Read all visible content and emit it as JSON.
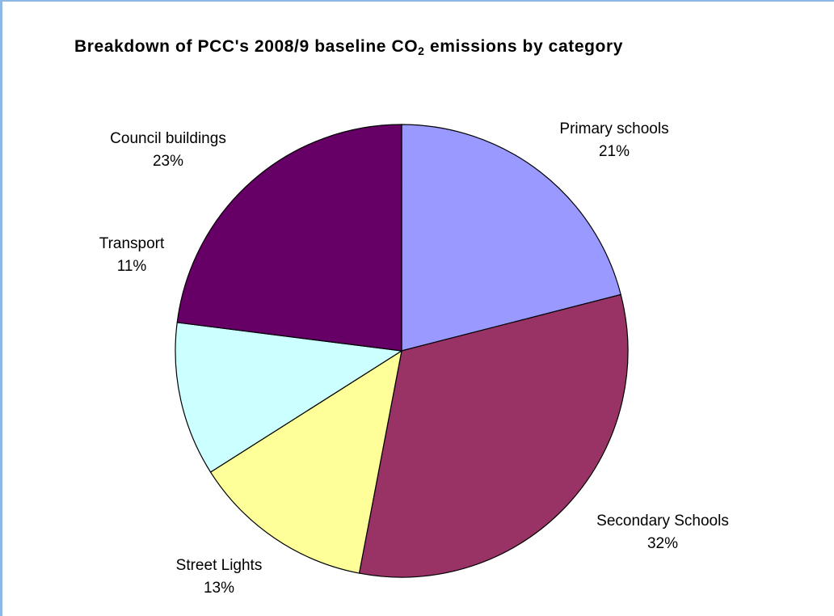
{
  "chart_data": {
    "type": "pie",
    "title_parts": {
      "before": "Breakdown of PCC's 2008/9 baseline CO",
      "sub": "2",
      "after": " emissions by category"
    },
    "slices": [
      {
        "name": "Primary schools",
        "label": "21%",
        "value": 21,
        "color": "#9999ff"
      },
      {
        "name": "Secondary Schools",
        "label": "32%",
        "value": 32,
        "color": "#993366"
      },
      {
        "name": "Street Lights",
        "label": "13%",
        "value": 13,
        "color": "#ffff99"
      },
      {
        "name": "Transport",
        "label": "11%",
        "value": 11,
        "color": "#ccffff"
      },
      {
        "name": "Council buildings",
        "label": "23%",
        "value": 23,
        "color": "#660066"
      }
    ],
    "start": "top",
    "direction": "clockwise",
    "legend": "none"
  }
}
